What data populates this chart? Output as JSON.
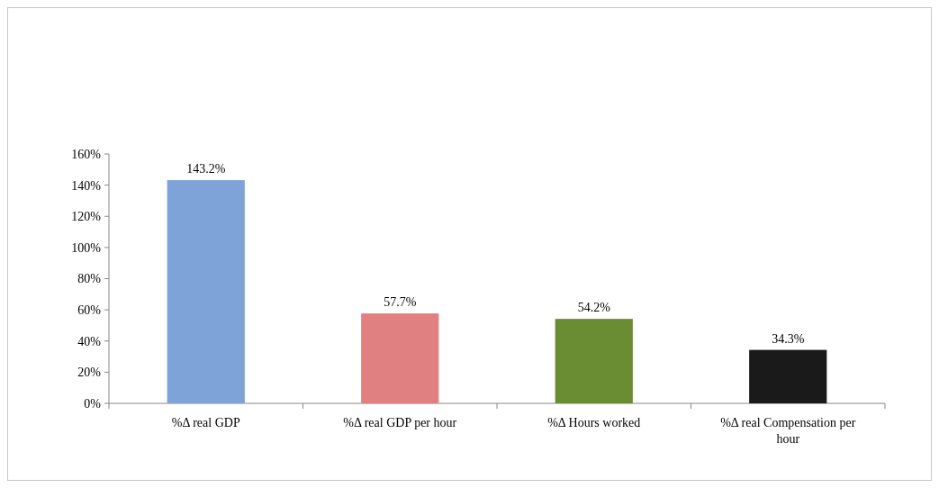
{
  "chart_data": {
    "type": "bar",
    "categories": [
      "%Δ real GDP",
      "%Δ real GDP per hour",
      "%Δ Hours worked",
      "%Δ real Compensation per hour"
    ],
    "values": [
      143.2,
      57.7,
      54.2,
      34.3
    ],
    "colors": [
      "#7da3d8",
      "#e08080",
      "#6a8c32",
      "#1a1a1a"
    ],
    "value_labels": [
      "143.2%",
      "57.7%",
      "54.2%",
      "34.3%"
    ],
    "ylim": [
      0,
      160
    ],
    "yticks": [
      {
        "value": 0,
        "label": "0%"
      },
      {
        "value": 20,
        "label": "20%"
      },
      {
        "value": 40,
        "label": "40%"
      },
      {
        "value": 60,
        "label": "60%"
      },
      {
        "value": 80,
        "label": "80%"
      },
      {
        "value": 100,
        "label": "100%"
      },
      {
        "value": 120,
        "label": "120%"
      },
      {
        "value": 140,
        "label": "140%"
      },
      {
        "value": 160,
        "label": "160%"
      }
    ],
    "grid": false
  }
}
